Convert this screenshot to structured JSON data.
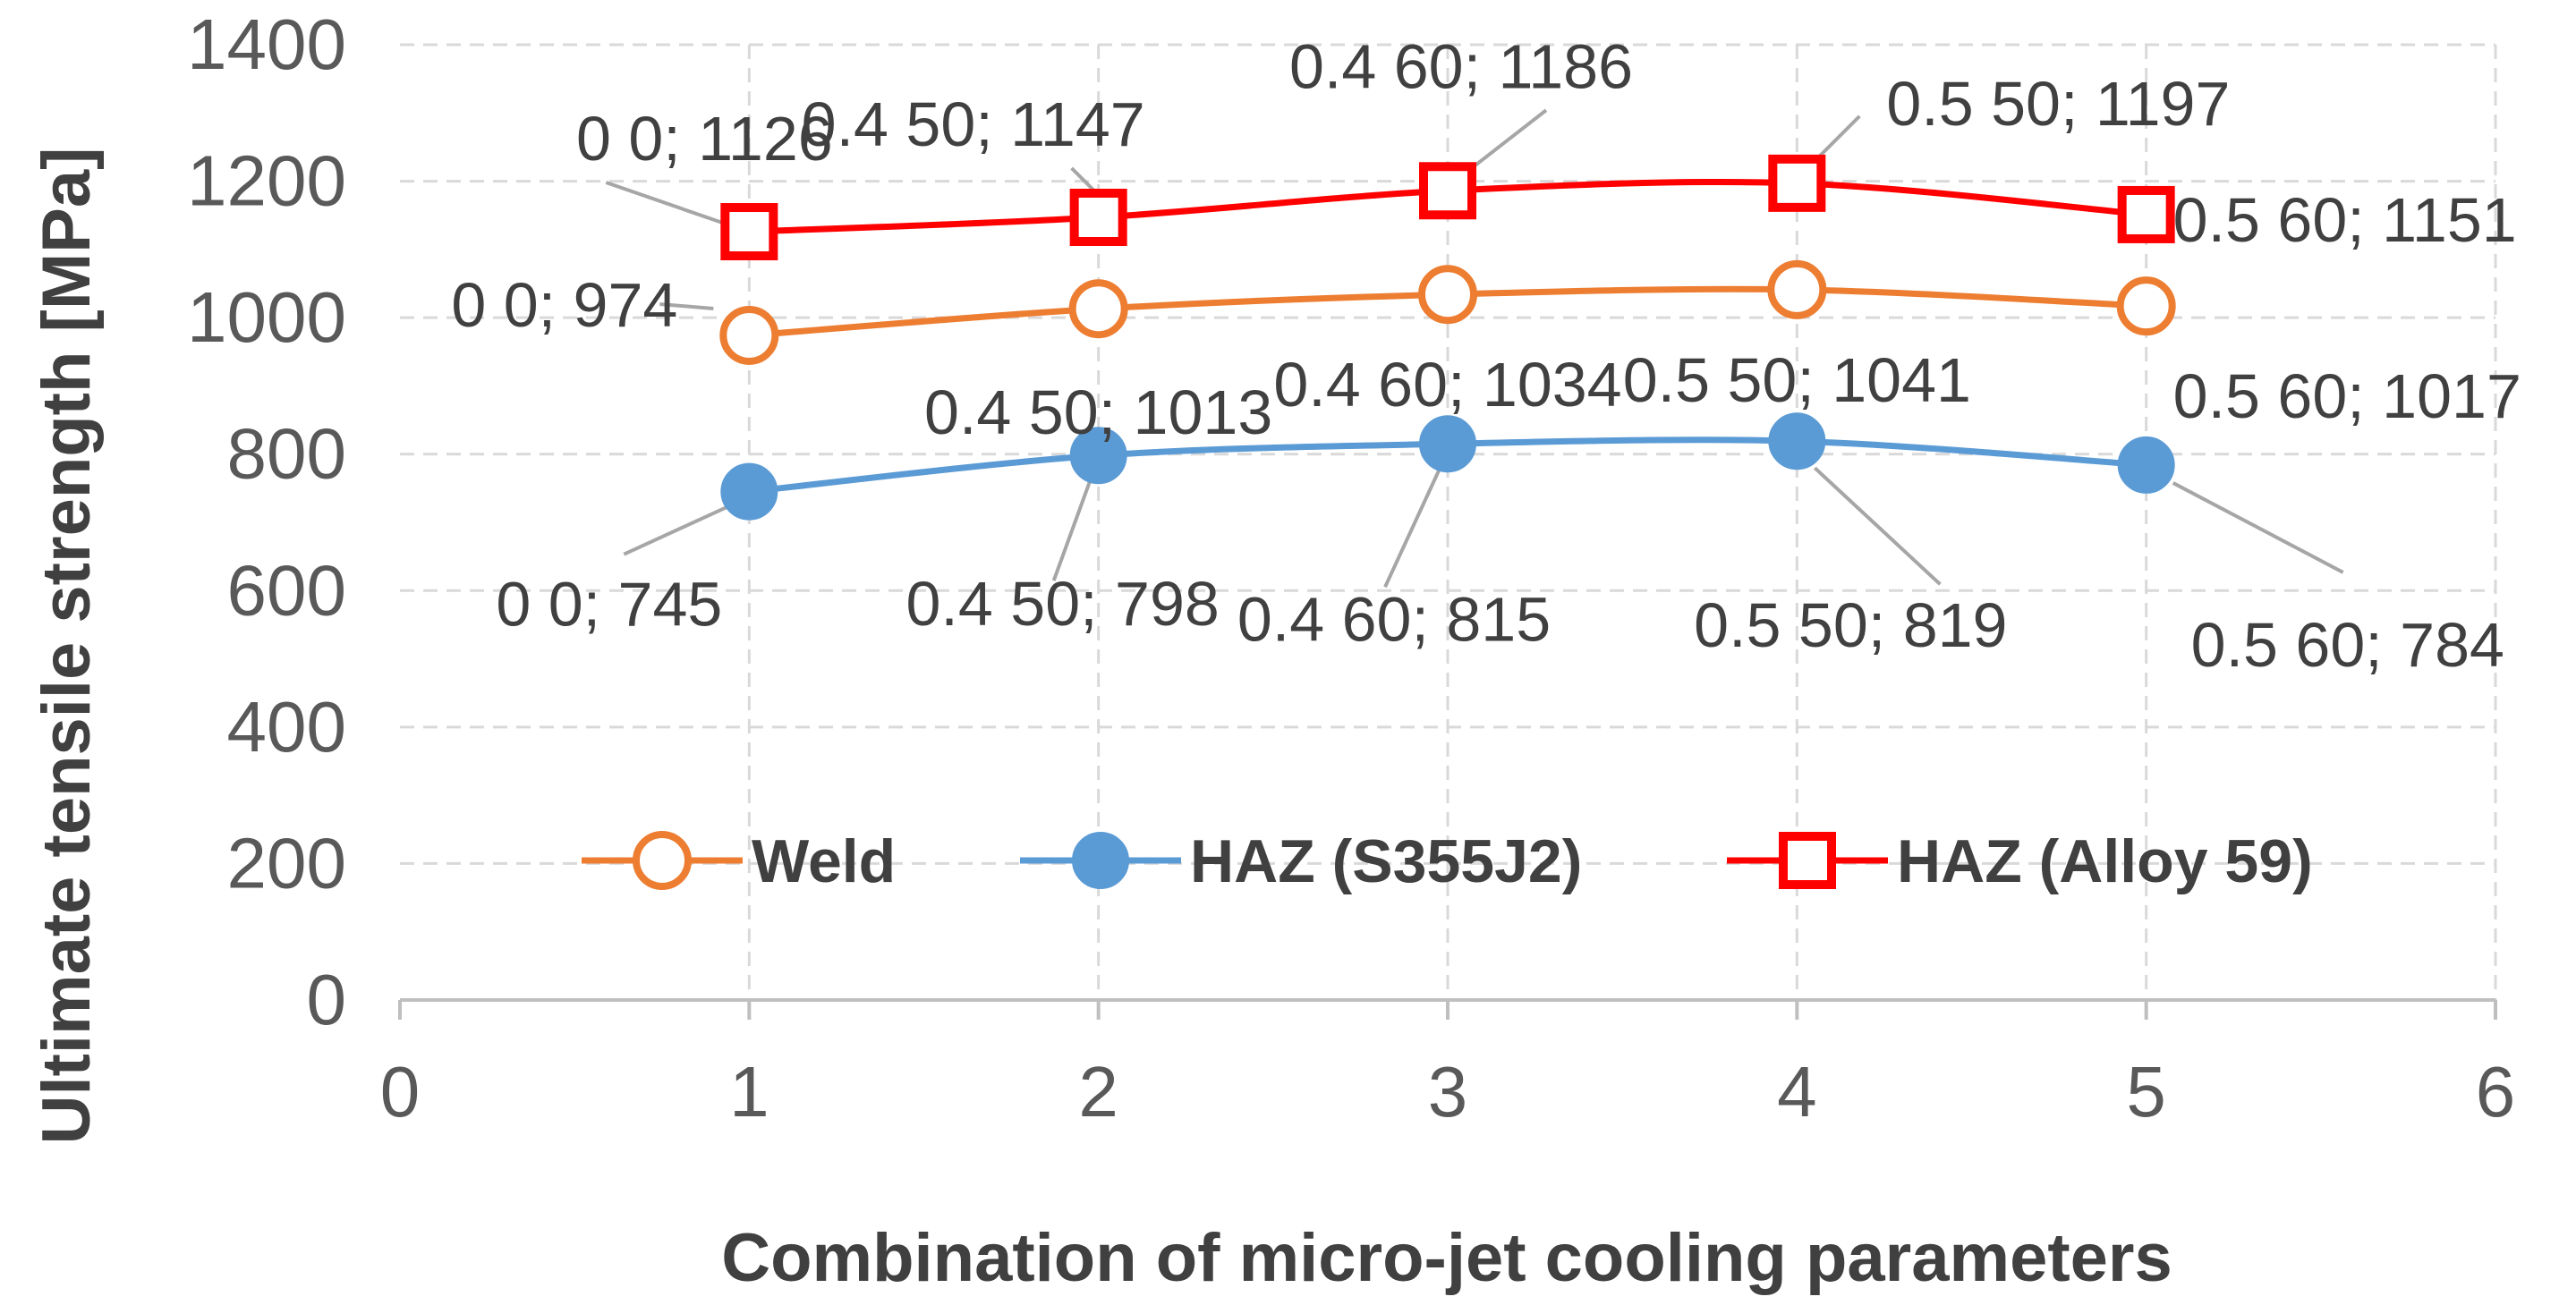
{
  "chart_data": {
    "type": "scatter",
    "title": "",
    "xlabel": "Combination of micro-jet cooling parameters",
    "ylabel": "Ultimate tensile strength [MPa]",
    "xlim": [
      0,
      6
    ],
    "ylim": [
      0,
      1400
    ],
    "xticks": [
      "0",
      "1",
      "2",
      "3",
      "4",
      "5",
      "6"
    ],
    "yticks": [
      "0",
      "200",
      "400",
      "600",
      "800",
      "1000",
      "1200",
      "1400"
    ],
    "grid": "dashed",
    "legend_position": "inside-bottom-center",
    "x": [
      1,
      2,
      3,
      4,
      5
    ],
    "series": [
      {
        "name": "Weld",
        "color": "#ED7D31",
        "marker": "hollow-circle",
        "values": [
          974,
          1013,
          1034,
          1041,
          1017
        ],
        "labels": [
          "0 0; 974",
          "0.4 50; 1013",
          "0.4 60; 1034",
          "0.5 50; 1041",
          "0.5 60; 1017"
        ]
      },
      {
        "name": "HAZ (S355J2)",
        "color": "#5B9BD5",
        "marker": "filled-circle",
        "values": [
          745,
          798,
          815,
          819,
          784
        ],
        "labels": [
          "0 0; 745",
          "0.4 50; 798",
          "0.4 60; 815",
          "0.5 50; 819",
          "0.5 60; 784"
        ]
      },
      {
        "name": "HAZ (Alloy 59)",
        "color": "#FF0000",
        "marker": "hollow-square",
        "values": [
          1126,
          1147,
          1186,
          1197,
          1151
        ],
        "labels": [
          "0 0; 1126",
          "0.4 50; 1147",
          "0.4 60; 1186",
          "0.5 50; 1197",
          "0.5 60; 1151"
        ]
      }
    ]
  }
}
